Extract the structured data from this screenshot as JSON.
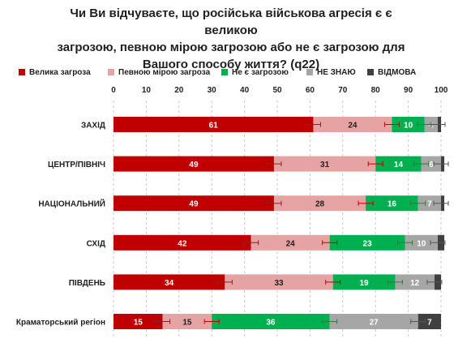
{
  "chart_data": {
    "type": "bar",
    "stacked": true,
    "orientation": "horizontal",
    "title_lines": [
      "Чи Ви відчуваєте, що російська військова агресія є є великою",
      "загрозою, певною мірою загрозою або не є загрозою для",
      "Вашого способу життя?  (q22)"
    ],
    "categories": [
      "ЗАХІД",
      "ЦЕНТР/ПІВНІЧ",
      "НАЦІОНАЛЬНИЙ",
      "СХІД",
      "ПІВДЕНЬ",
      "Краматорський регіон"
    ],
    "series": [
      {
        "name": "Велика загроза",
        "color": "#c00000",
        "values": [
          61,
          49,
          49,
          42,
          34,
          15
        ]
      },
      {
        "name": "Певною мірою загроза",
        "color": "#e6a3a3",
        "values": [
          24,
          31,
          28,
          24,
          33,
          15
        ]
      },
      {
        "name": "Не є загрозою",
        "color": "#00b050",
        "values": [
          10,
          14,
          16,
          23,
          19,
          36
        ]
      },
      {
        "name": "НЕ ЗНАЮ",
        "color": "#a6a6a6",
        "values": [
          4,
          6,
          7,
          10,
          12,
          27
        ]
      },
      {
        "name": "ВІДМОВА",
        "color": "#404040",
        "values": [
          1,
          1,
          1,
          2,
          2,
          7
        ]
      }
    ],
    "xlim": [
      0,
      100
    ],
    "xticks": [
      0,
      10,
      20,
      30,
      40,
      50,
      60,
      70,
      80,
      90,
      100
    ],
    "grid": "vertical dashed",
    "legend_position": "top",
    "error_bars": true,
    "show_value_threshold": 3
  }
}
